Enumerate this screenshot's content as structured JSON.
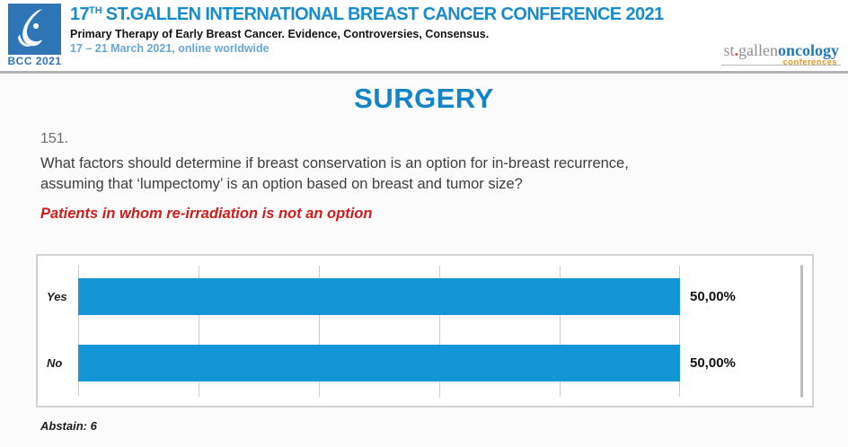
{
  "header": {
    "badge_caption": "BCC 2021",
    "title_prefix": "17",
    "title_sup": "TH",
    "title_rest": "ST.GALLEN INTERNATIONAL BREAST CANCER CONFERENCE 2021",
    "subtitle": "Primary Therapy of Early Breast Cancer. Evidence, Controversies, Consensus.",
    "dates": "17 – 21 March 2021, online worldwide",
    "org_logo": {
      "part_st": "st",
      "part_dot": ".",
      "part_gallen": "gallen",
      "part_oncology": "oncology",
      "part_conferences": "conferences"
    }
  },
  "main": {
    "section_title": "SURGERY",
    "question_number": "151.",
    "question": "What factors should determine if breast conservation is an option for in-breast recurrence, assuming that ‘lumpectomy’ is an option based on breast and tumor size?",
    "question_highlight": "Patients in whom re-irradiation is not an option",
    "abstain_note": "Abstain: 6"
  },
  "chart_data": {
    "type": "bar",
    "orientation": "horizontal",
    "title": "",
    "categories": [
      "Yes",
      "No"
    ],
    "values": [
      50.0,
      50.0
    ],
    "value_labels": [
      "50,00%",
      "50,00%"
    ],
    "xlim": [
      0,
      50
    ],
    "gridline_step": 10,
    "grid": true,
    "legend": "none",
    "bar_color": "#1496d6",
    "abstain": 6
  },
  "colors": {
    "brand_blue": "#1b8cca",
    "section_blue": "#1484c8",
    "logo_square_blue": "#2e75b5",
    "dates_blue": "#6aa6d4",
    "bar_blue": "#1496d6",
    "highlight_red": "#cf1d1d",
    "org_gray": "#8f8f8f",
    "org_orange": "#e09a2e"
  }
}
